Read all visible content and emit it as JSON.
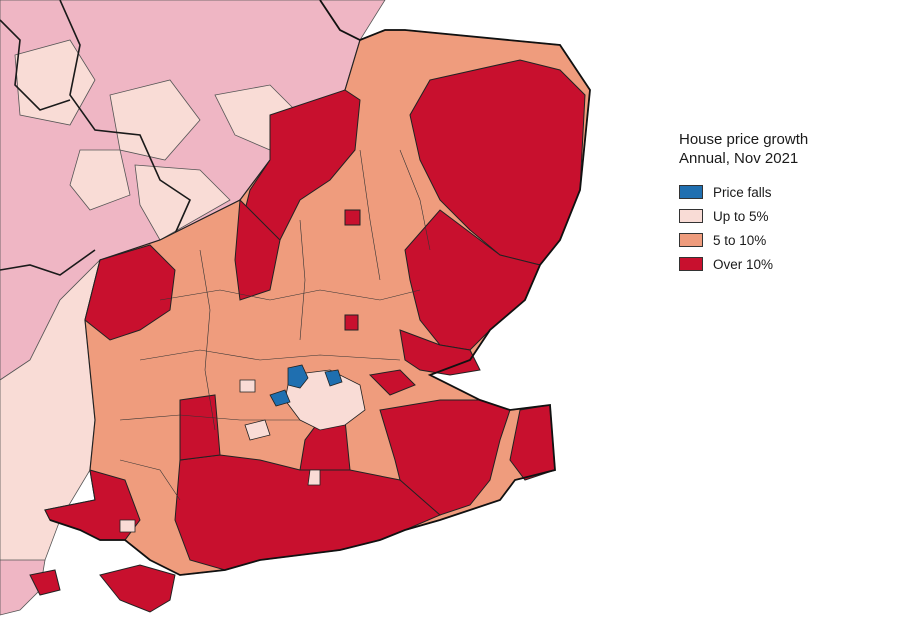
{
  "legend": {
    "title_line1": "House price growth",
    "title_line2": "Annual, Nov 2021",
    "items": [
      {
        "label": "Price falls",
        "color": "#1f6fb0"
      },
      {
        "label": "Up to 5%",
        "color": "#f9dcd6"
      },
      {
        "label": "5 to 10%",
        "color": "#ef9c7d"
      },
      {
        "label": "Over 10%",
        "color": "#c8102e"
      }
    ]
  },
  "colors": {
    "background_regions": "#efb6c4",
    "outside_upto5": "#f9dcd6",
    "boundary": "#222222"
  }
}
